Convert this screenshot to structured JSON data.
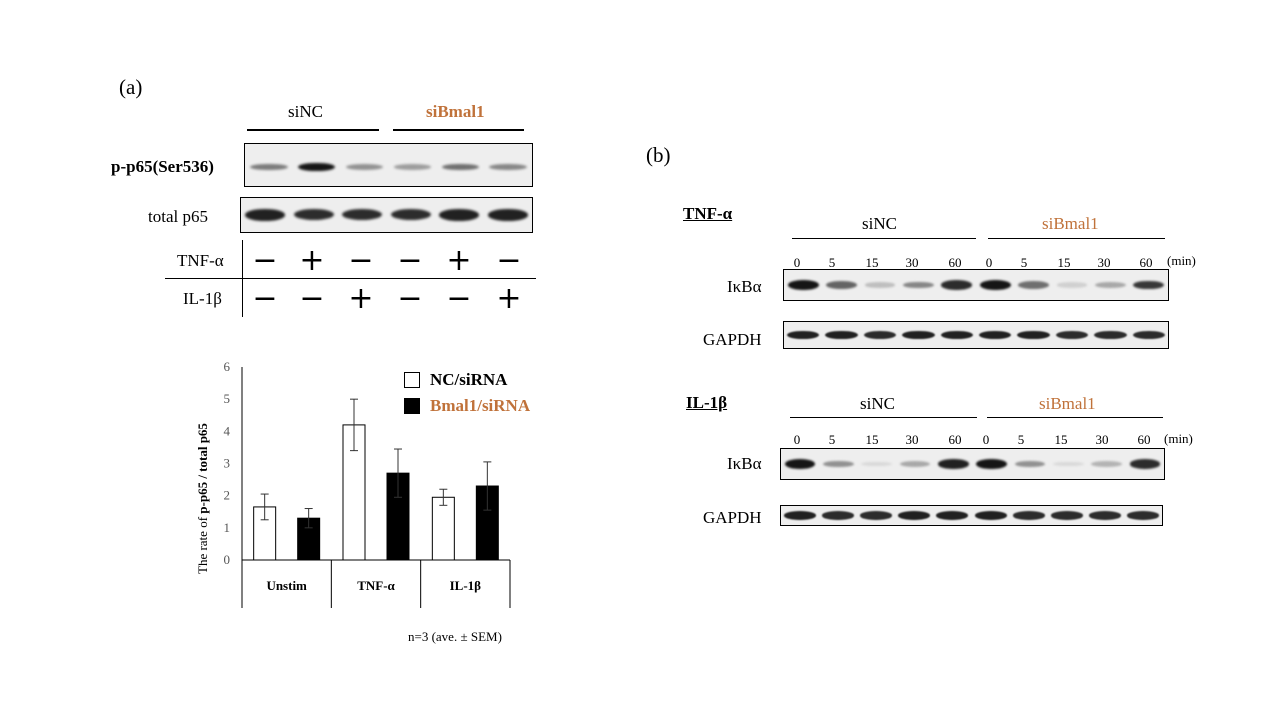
{
  "panel_a": {
    "tag": "(a)",
    "group_labels": [
      "siNC",
      "siBmal1"
    ],
    "row_labels": {
      "phospho": "p-p65(Ser536)",
      "total": "total p65"
    },
    "treatments": [
      {
        "label": "TNF-α",
        "signs": [
          "−",
          "+",
          "−",
          "−",
          "+",
          "−"
        ]
      },
      {
        "label": "IL-1β",
        "signs": [
          "−",
          "−",
          "+",
          "−",
          "−",
          "+"
        ]
      }
    ],
    "phospho_band_intensity": [
      0.5,
      0.95,
      0.4,
      0.35,
      0.55,
      0.45
    ],
    "total_band_intensity": [
      0.9,
      0.85,
      0.85,
      0.85,
      0.9,
      0.9
    ]
  },
  "chart_data": {
    "type": "bar",
    "ylabel_prefix": "The rate of ",
    "ylabel_main": "p-p65 / total p65",
    "ylim": [
      0,
      6
    ],
    "yticks": [
      "0",
      "1",
      "2",
      "3",
      "4",
      "5",
      "6"
    ],
    "categories": [
      "Unstim",
      "TNF-α",
      "IL-1β"
    ],
    "series": [
      {
        "name": "NC/siRNA",
        "color": "#ffffff",
        "values": [
          1.65,
          4.2,
          1.95
        ],
        "errors": [
          0.4,
          0.8,
          0.25
        ]
      },
      {
        "name": "Bmal1/siRNA",
        "color": "#000000",
        "values": [
          1.3,
          2.7,
          2.3
        ],
        "errors": [
          0.3,
          0.75,
          0.75
        ]
      }
    ],
    "legend_position": "top-right",
    "grid": false,
    "note": "n=3 (ave. ± SEM)"
  },
  "panel_b": {
    "tag": "(b)",
    "unit": "(min)",
    "timepoints": [
      "0",
      "5",
      "15",
      "30",
      "60",
      "0",
      "5",
      "15",
      "30",
      "60"
    ],
    "blocks": [
      {
        "title": "TNF-α",
        "group_labels": [
          "siNC",
          "siBmal1"
        ],
        "row_labels": [
          "IκBα",
          "GAPDH"
        ],
        "ikba_intensity": [
          0.95,
          0.6,
          0.2,
          0.45,
          0.85,
          0.95,
          0.55,
          0.12,
          0.3,
          0.8
        ],
        "gapdh_intensity": [
          0.9,
          0.9,
          0.85,
          0.9,
          0.9,
          0.9,
          0.9,
          0.85,
          0.85,
          0.85
        ]
      },
      {
        "title": "IL-1β",
        "group_labels": [
          "siNC",
          "siBmal1"
        ],
        "row_labels": [
          "IκBα",
          "GAPDH"
        ],
        "ikba_intensity": [
          0.95,
          0.4,
          0.08,
          0.3,
          0.9,
          0.95,
          0.4,
          0.08,
          0.25,
          0.85
        ],
        "gapdh_intensity": [
          0.9,
          0.85,
          0.85,
          0.9,
          0.9,
          0.9,
          0.85,
          0.85,
          0.85,
          0.85
        ]
      }
    ]
  }
}
